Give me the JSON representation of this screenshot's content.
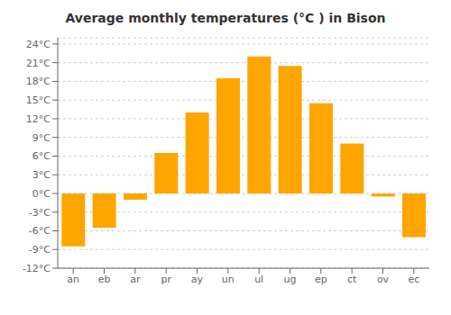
{
  "chart_data": {
    "type": "bar",
    "title": "Average monthly temperatures (°C ) in Bison",
    "categories": [
      "an",
      "eb",
      "ar",
      "pr",
      "ay",
      "un",
      "ul",
      "ug",
      "ep",
      "ct",
      "ov",
      "ec"
    ],
    "values": [
      -8.5,
      -5.5,
      -1.0,
      6.5,
      13.0,
      18.5,
      22.0,
      20.5,
      14.5,
      8.0,
      -0.5,
      -7.0
    ],
    "color": "#FFA500",
    "ylim": [
      -12,
      25
    ],
    "yticks": [
      {
        "value": -12,
        "label": "-12°C"
      },
      {
        "value": -9,
        "label": "-9°C"
      },
      {
        "value": -6,
        "label": "-6°C"
      },
      {
        "value": -3,
        "label": "-3°C"
      },
      {
        "value": 0,
        "label": "0°C"
      },
      {
        "value": 3,
        "label": "3°C"
      },
      {
        "value": 6,
        "label": "6°C"
      },
      {
        "value": 9,
        "label": "9°C"
      },
      {
        "value": 12,
        "label": "12°C"
      },
      {
        "value": 15,
        "label": "15°C"
      },
      {
        "value": 18,
        "label": "18°C"
      },
      {
        "value": 21,
        "label": "21°C"
      },
      {
        "value": 24,
        "label": "24°C"
      }
    ],
    "grid": true
  }
}
